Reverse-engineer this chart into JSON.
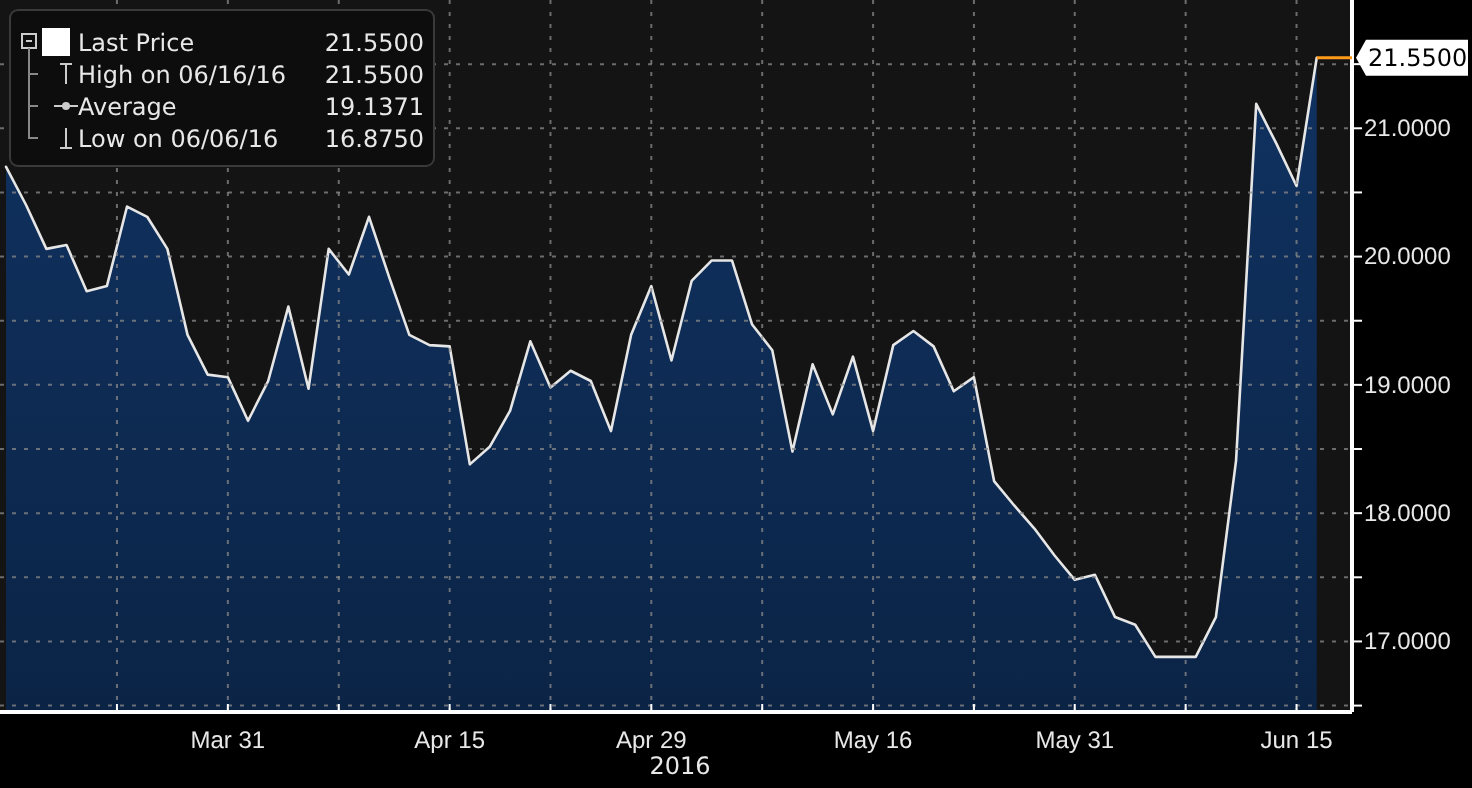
{
  "chart_data": {
    "type": "area",
    "xlabel": "2016",
    "categories": [
      null,
      null,
      null,
      null,
      null,
      null,
      null,
      null,
      null,
      null,
      null,
      "Mar 31",
      null,
      null,
      null,
      null,
      null,
      null,
      null,
      null,
      null,
      null,
      "Apr 15",
      null,
      null,
      null,
      null,
      null,
      null,
      null,
      null,
      null,
      "Apr 29",
      null,
      null,
      null,
      null,
      null,
      null,
      null,
      null,
      null,
      null,
      "May 16",
      null,
      null,
      null,
      null,
      null,
      null,
      null,
      null,
      null,
      "May 31",
      null,
      null,
      null,
      null,
      null,
      null,
      null,
      null,
      null,
      null,
      "Jun 15",
      null
    ],
    "series": [
      {
        "name": "Last Price",
        "color": "#0e2d57",
        "values": [
          20.7,
          20.4,
          20.06,
          20.09,
          19.73,
          19.77,
          20.39,
          20.31,
          20.06,
          19.39,
          19.08,
          19.06,
          18.72,
          19.03,
          19.61,
          18.97,
          20.06,
          19.86,
          20.31,
          19.84,
          19.39,
          19.31,
          19.3,
          18.38,
          18.52,
          18.8,
          19.34,
          18.98,
          19.11,
          19.03,
          18.64,
          19.39,
          19.77,
          19.19,
          19.81,
          19.97,
          19.97,
          19.47,
          19.27,
          18.48,
          19.16,
          18.77,
          19.22,
          18.64,
          19.31,
          19.42,
          19.3,
          18.95,
          19.06,
          18.25,
          18.06,
          17.88,
          17.67,
          17.48,
          17.52,
          17.19,
          17.13,
          16.88,
          16.88,
          16.88,
          17.19,
          18.41,
          21.19,
          20.88,
          20.55,
          21.55
        ]
      }
    ],
    "ylim": [
      16.45,
      22.0
    ],
    "yticks": [
      {
        "value": 16.5,
        "label": null
      },
      {
        "value": 17,
        "label": "17.0000"
      },
      {
        "value": 17.5,
        "label": null
      },
      {
        "value": 18,
        "label": "18.0000"
      },
      {
        "value": 18.5,
        "label": null
      },
      {
        "value": 19,
        "label": "19.0000"
      },
      {
        "value": 19.5,
        "label": null
      },
      {
        "value": 20,
        "label": "20.0000"
      },
      {
        "value": 20.5,
        "label": null
      },
      {
        "value": 21,
        "label": "21.0000"
      },
      {
        "value": 21.5,
        "label": null
      }
    ],
    "grid": true,
    "legend": "top left",
    "annotations": [
      "21.5500",
      "High on 06/16/16",
      "21.5500",
      "Average",
      "19.1371",
      "Low on 06/06/16",
      "16.8750",
      "21.5500"
    ]
  }
}
